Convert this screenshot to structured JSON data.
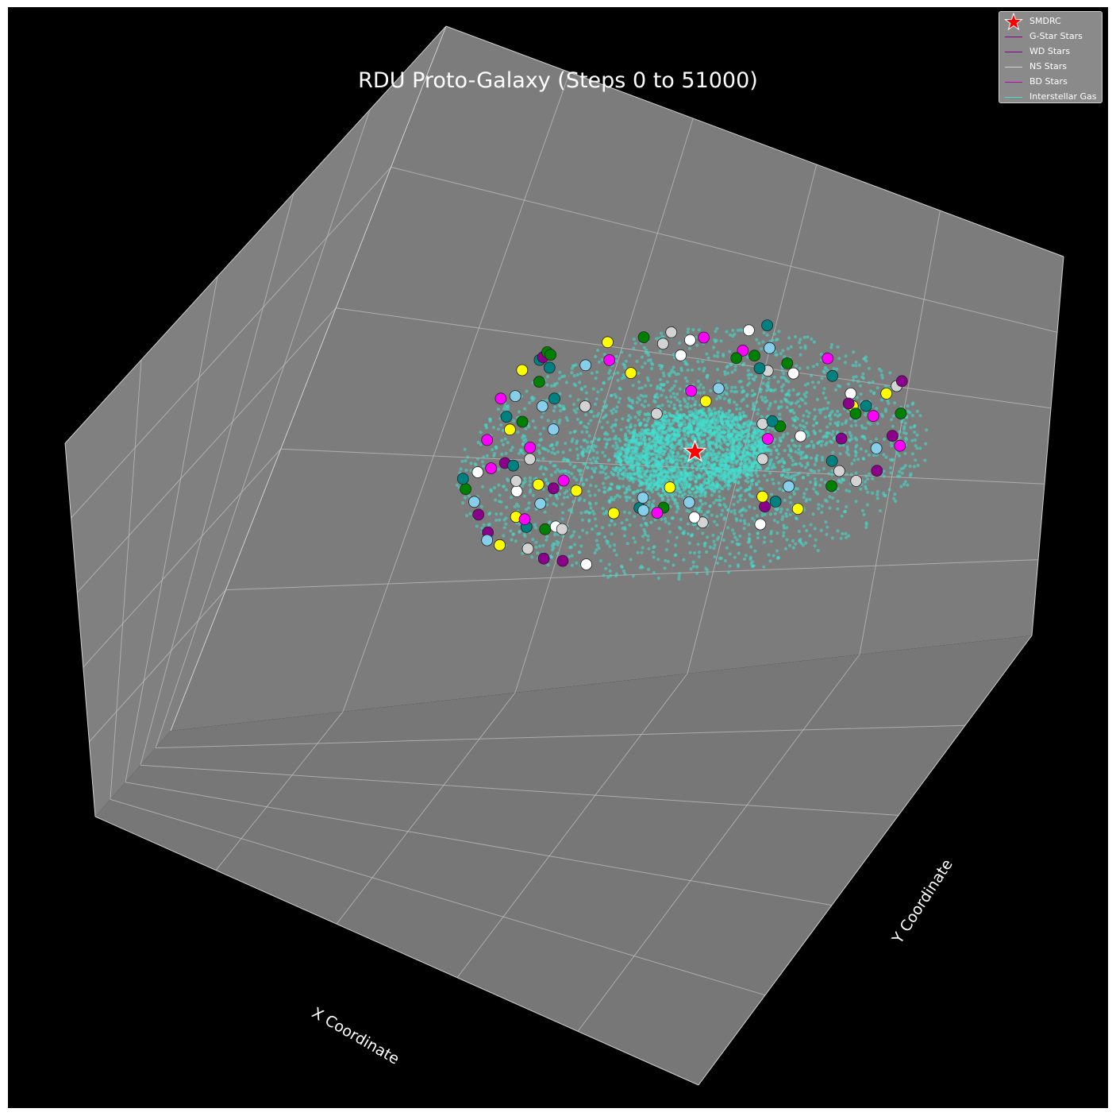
{
  "chart_data": {
    "type": "scatter",
    "title": "RDU Proto-Galaxy (Steps 0 to 51000)",
    "xlabel": "X Coordinate",
    "ylabel": "Y Coordinate",
    "background_color": "#000000",
    "pane_color": "#7a7a7a",
    "grid": true,
    "legend_position": "top-right",
    "legend": [
      {
        "label": "SMDRC",
        "color": "#ff0000",
        "marker": "star"
      },
      {
        "label": "G-Star Stars",
        "color": "#8b008b",
        "marker": "line"
      },
      {
        "label": "WD Stars",
        "color": "#8b008b",
        "marker": "line"
      },
      {
        "label": "NS Stars",
        "color": "#d3d3d3",
        "marker": "line"
      },
      {
        "label": "BD Stars",
        "color": "#c000c0",
        "marker": "line"
      },
      {
        "label": "Interstellar Gas",
        "color": "#40e0d0",
        "marker": "line"
      }
    ],
    "center": {
      "name": "SMDRC",
      "x": 0,
      "y": 0,
      "color": "#ff0000"
    },
    "gas": {
      "name": "Interstellar Gas",
      "color": "#40e0d0",
      "disk_radius": 100,
      "core_radius": 25
    },
    "stars": [
      {
        "x": -75,
        "y": -62,
        "color": "#8b008b"
      },
      {
        "x": -74,
        "y": -68,
        "color": "#87ceeb"
      },
      {
        "x": -68,
        "y": -72,
        "color": "#ffff00"
      },
      {
        "x": -56,
        "y": -75,
        "color": "#d3d3d3"
      },
      {
        "x": -48,
        "y": -83,
        "color": "#8b008b"
      },
      {
        "x": -40,
        "y": -85,
        "color": "#8b008b"
      },
      {
        "x": -30,
        "y": -88,
        "color": "#ffffff"
      },
      {
        "x": -82,
        "y": -48,
        "color": "#8b008b"
      },
      {
        "x": -86,
        "y": -38,
        "color": "#87ceeb"
      },
      {
        "x": -92,
        "y": -28,
        "color": "#008000"
      },
      {
        "x": -95,
        "y": -20,
        "color": "#008080"
      },
      {
        "x": -90,
        "y": -15,
        "color": "#ffffff"
      },
      {
        "x": -85,
        "y": -12,
        "color": "#ff00ff"
      },
      {
        "x": -80,
        "y": -8,
        "color": "#8b008b"
      },
      {
        "x": -66,
        "y": -50,
        "color": "#ffff00"
      },
      {
        "x": -60,
        "y": -58,
        "color": "#008080"
      },
      {
        "x": -62,
        "y": -52,
        "color": "#ff00ff"
      },
      {
        "x": -52,
        "y": -60,
        "color": "#008000"
      },
      {
        "x": -48,
        "y": -58,
        "color": "#ffffff"
      },
      {
        "x": -45,
        "y": -60,
        "color": "#d3d3d3"
      },
      {
        "x": -58,
        "y": -40,
        "color": "#87ceeb"
      },
      {
        "x": -70,
        "y": -30,
        "color": "#ffffff"
      },
      {
        "x": -72,
        "y": -22,
        "color": "#d3d3d3"
      },
      {
        "x": -62,
        "y": -25,
        "color": "#ffff00"
      },
      {
        "x": -55,
        "y": -28,
        "color": "#8b008b"
      },
      {
        "x": -52,
        "y": -22,
        "color": "#ff00ff"
      },
      {
        "x": -45,
        "y": -30,
        "color": "#ffff00"
      },
      {
        "x": -76,
        "y": -10,
        "color": "#008080"
      },
      {
        "x": -70,
        "y": -5,
        "color": "#d3d3d3"
      },
      {
        "x": -72,
        "y": 4,
        "color": "#ff00ff"
      },
      {
        "x": -92,
        "y": 10,
        "color": "#ff00ff"
      },
      {
        "x": -84,
        "y": 18,
        "color": "#ffff00"
      },
      {
        "x": -80,
        "y": 24,
        "color": "#008000"
      },
      {
        "x": -88,
        "y": 28,
        "color": "#008080"
      },
      {
        "x": -94,
        "y": 42,
        "color": "#ff00ff"
      },
      {
        "x": -88,
        "y": 44,
        "color": "#87ceeb"
      },
      {
        "x": -74,
        "y": 36,
        "color": "#87ceeb"
      },
      {
        "x": -70,
        "y": 42,
        "color": "#008080"
      },
      {
        "x": -65,
        "y": 18,
        "color": "#87ceeb"
      },
      {
        "x": -55,
        "y": 36,
        "color": "#d3d3d3"
      },
      {
        "x": -80,
        "y": 55,
        "color": "#008000"
      },
      {
        "x": -78,
        "y": 66,
        "color": "#008080"
      },
      {
        "x": -90,
        "y": 64,
        "color": "#ffff00"
      },
      {
        "x": -84,
        "y": 72,
        "color": "#008080"
      },
      {
        "x": -83,
        "y": 74,
        "color": "#8b008b"
      },
      {
        "x": -82,
        "y": 78,
        "color": "#008000"
      },
      {
        "x": -80,
        "y": 76,
        "color": "#008000"
      },
      {
        "x": -62,
        "y": 68,
        "color": "#87ceeb"
      },
      {
        "x": -52,
        "y": 72,
        "color": "#ff00ff"
      },
      {
        "x": -40,
        "y": 62,
        "color": "#ffff00"
      },
      {
        "x": -56,
        "y": 86,
        "color": "#ffff00"
      },
      {
        "x": -40,
        "y": 90,
        "color": "#008000"
      },
      {
        "x": -30,
        "y": 85,
        "color": "#d3d3d3"
      },
      {
        "x": -18,
        "y": 88,
        "color": "#ffffff"
      },
      {
        "x": -12,
        "y": 90,
        "color": "#ff00ff"
      },
      {
        "x": -20,
        "y": 76,
        "color": "#ffffff"
      },
      {
        "x": -28,
        "y": 94,
        "color": "#d3d3d3"
      },
      {
        "x": 8,
        "y": 96,
        "color": "#ffffff"
      },
      {
        "x": 16,
        "y": 100,
        "color": "#008080"
      },
      {
        "x": 8,
        "y": 80,
        "color": "#ff00ff"
      },
      {
        "x": 20,
        "y": 82,
        "color": "#87ceeb"
      },
      {
        "x": 14,
        "y": 76,
        "color": "#008000"
      },
      {
        "x": 6,
        "y": 74,
        "color": "#008000"
      },
      {
        "x": 30,
        "y": 70,
        "color": "#008000"
      },
      {
        "x": 34,
        "y": 62,
        "color": "#ffffff"
      },
      {
        "x": 22,
        "y": 64,
        "color": "#d3d3d3"
      },
      {
        "x": 18,
        "y": 66,
        "color": "#008080"
      },
      {
        "x": 48,
        "y": 74,
        "color": "#ff00ff"
      },
      {
        "x": 52,
        "y": 60,
        "color": "#008080"
      },
      {
        "x": 62,
        "y": 46,
        "color": "#ffffff"
      },
      {
        "x": 64,
        "y": 36,
        "color": "#ffff00"
      },
      {
        "x": 66,
        "y": 30,
        "color": "#008000"
      },
      {
        "x": 62,
        "y": 38,
        "color": "#8b008b"
      },
      {
        "x": 70,
        "y": 36,
        "color": "#008080"
      },
      {
        "x": 74,
        "y": 28,
        "color": "#ff00ff"
      },
      {
        "x": 86,
        "y": 30,
        "color": "#008000"
      },
      {
        "x": 78,
        "y": 46,
        "color": "#ffff00"
      },
      {
        "x": 82,
        "y": 52,
        "color": "#d3d3d3"
      },
      {
        "x": 84,
        "y": 56,
        "color": "#8b008b"
      },
      {
        "x": 62,
        "y": 10,
        "color": "#8b008b"
      },
      {
        "x": 84,
        "y": 12,
        "color": "#8b008b"
      },
      {
        "x": 88,
        "y": 4,
        "color": "#ff00ff"
      },
      {
        "x": 78,
        "y": 2,
        "color": "#87ceeb"
      },
      {
        "x": 80,
        "y": -16,
        "color": "#8b008b"
      },
      {
        "x": 72,
        "y": -24,
        "color": "#d3d3d3"
      },
      {
        "x": 64,
        "y": -16,
        "color": "#d3d3d3"
      },
      {
        "x": 62,
        "y": -28,
        "color": "#008000"
      },
      {
        "x": 60,
        "y": -8,
        "color": "#008080"
      },
      {
        "x": 44,
        "y": -28,
        "color": "#87ceeb"
      },
      {
        "x": 40,
        "y": -40,
        "color": "#008080"
      },
      {
        "x": 36,
        "y": -44,
        "color": "#8b008b"
      },
      {
        "x": 34,
        "y": -36,
        "color": "#ffff00"
      },
      {
        "x": 50,
        "y": -46,
        "color": "#ffff00"
      },
      {
        "x": 36,
        "y": -58,
        "color": "#ffffff"
      },
      {
        "x": 12,
        "y": -56,
        "color": "#d3d3d3"
      },
      {
        "x": 8,
        "y": -52,
        "color": "#ffffff"
      },
      {
        "x": 4,
        "y": -40,
        "color": "#87ceeb"
      },
      {
        "x": -6,
        "y": -44,
        "color": "#008000"
      },
      {
        "x": -8,
        "y": -48,
        "color": "#ff00ff"
      },
      {
        "x": -16,
        "y": -44,
        "color": "#008080"
      },
      {
        "x": -14,
        "y": -46,
        "color": "#87ceeb"
      },
      {
        "x": -26,
        "y": -48,
        "color": "#ffff00"
      },
      {
        "x": -6,
        "y": -28,
        "color": "#ffff00"
      },
      {
        "x": -16,
        "y": -36,
        "color": "#87ceeb"
      },
      {
        "x": 30,
        "y": -6,
        "color": "#d3d3d3"
      },
      {
        "x": 30,
        "y": 10,
        "color": "#ff00ff"
      },
      {
        "x": 34,
        "y": 20,
        "color": "#008000"
      },
      {
        "x": 2,
        "y": 50,
        "color": "#87ceeb"
      },
      {
        "x": -22,
        "y": 30,
        "color": "#d3d3d3"
      },
      {
        "x": -10,
        "y": 48,
        "color": "#ff00ff"
      },
      {
        "x": -2,
        "y": 40,
        "color": "#ffff00"
      },
      {
        "x": 26,
        "y": 22,
        "color": "#d3d3d3"
      },
      {
        "x": 30,
        "y": 24,
        "color": "#008080"
      },
      {
        "x": 44,
        "y": 12,
        "color": "#ffffff"
      }
    ]
  }
}
